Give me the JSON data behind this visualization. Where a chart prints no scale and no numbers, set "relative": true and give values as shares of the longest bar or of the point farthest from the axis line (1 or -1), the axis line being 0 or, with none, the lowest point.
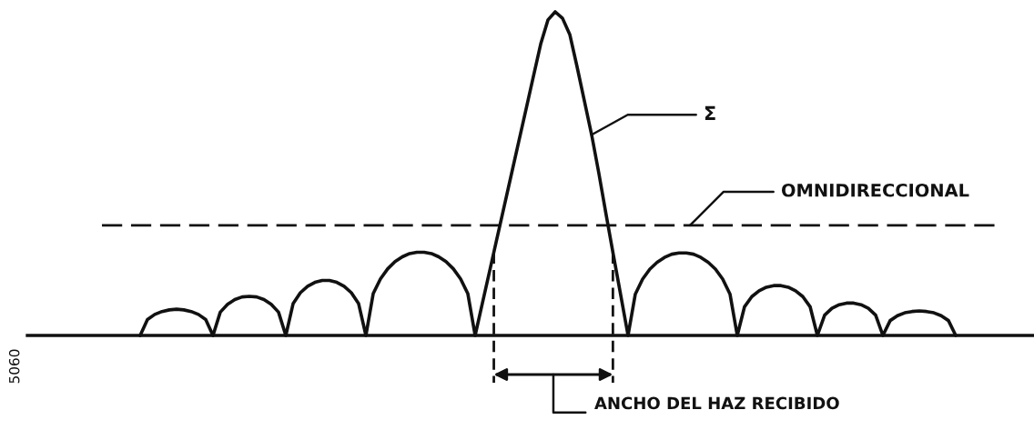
{
  "chart_data": {
    "type": "line",
    "relative": true,
    "marker": "none",
    "line_style": "solid",
    "categories": [
      null,
      null,
      null,
      null,
      null,
      null,
      null,
      null,
      null,
      null,
      null,
      null,
      null,
      null,
      null,
      null,
      null,
      null,
      null,
      null,
      null,
      null,
      null,
      null,
      null,
      null,
      null,
      null,
      null,
      null,
      null,
      null,
      null,
      null,
      null,
      null,
      null,
      null,
      null,
      null,
      null,
      null,
      null,
      null,
      null,
      null,
      null,
      null,
      null,
      null,
      null,
      null,
      null,
      null,
      null,
      null,
      null,
      null,
      null,
      null,
      null,
      null,
      null,
      null,
      null,
      null,
      null,
      null,
      null,
      null,
      null,
      null,
      null,
      null,
      null,
      null,
      null,
      null,
      null,
      null,
      null,
      null,
      null,
      null,
      null,
      null,
      null,
      null,
      null,
      null,
      null,
      null,
      null,
      null,
      null,
      null,
      null,
      null,
      null,
      null,
      null,
      null,
      null,
      null,
      null,
      null,
      null,
      null,
      null,
      null,
      null,
      null,
      null
    ],
    "series": [
      {
        "color": "#111111",
        "values": [
          0,
          0.049,
          0.065,
          0.074,
          0.079,
          0.081,
          0.079,
          0.074,
          0.065,
          0.049,
          0,
          0.072,
          0.096,
          0.111,
          0.119,
          0.121,
          0.119,
          0.111,
          0.096,
          0.072,
          0,
          0.098,
          0.132,
          0.152,
          0.164,
          0.17,
          0.17,
          0.164,
          0.152,
          0.132,
          0.098,
          0,
          0.129,
          0.175,
          0.206,
          0.228,
          0.243,
          0.253,
          0.257,
          0.257,
          0.253,
          0.243,
          0.228,
          0.206,
          0.175,
          0.129,
          0,
          0.1,
          0.2,
          0.3,
          0.4,
          0.5,
          0.6,
          0.7,
          0.8,
          0.9,
          0.975,
          1,
          0.98,
          0.93,
          0.83,
          0.725,
          0.62,
          0.5,
          0.372,
          0.247,
          0.124,
          0,
          0.128,
          0.174,
          0.205,
          0.226,
          0.241,
          0.251,
          0.255,
          0.255,
          0.251,
          0.241,
          0.226,
          0.205,
          0.174,
          0.128,
          0,
          0.089,
          0.12,
          0.138,
          0.149,
          0.154,
          0.154,
          0.149,
          0.138,
          0.12,
          0.089,
          0,
          0.063,
          0.084,
          0.095,
          0.1,
          0.1,
          0.095,
          0.084,
          0.063,
          0,
          0.046,
          0.061,
          0.07,
          0.074,
          0.076,
          0.074,
          0.07,
          0.061,
          0.046,
          0
        ]
      }
    ],
    "ref_lines": [
      {
        "axis": "y",
        "value": 0.34,
        "label": "OMNIDIRECCIONAL",
        "color": "#111111",
        "line_style": "dashed"
      }
    ],
    "annotations": [
      "Σ",
      "ANCHO DEL HAZ RECIBIDO",
      "5060"
    ]
  }
}
